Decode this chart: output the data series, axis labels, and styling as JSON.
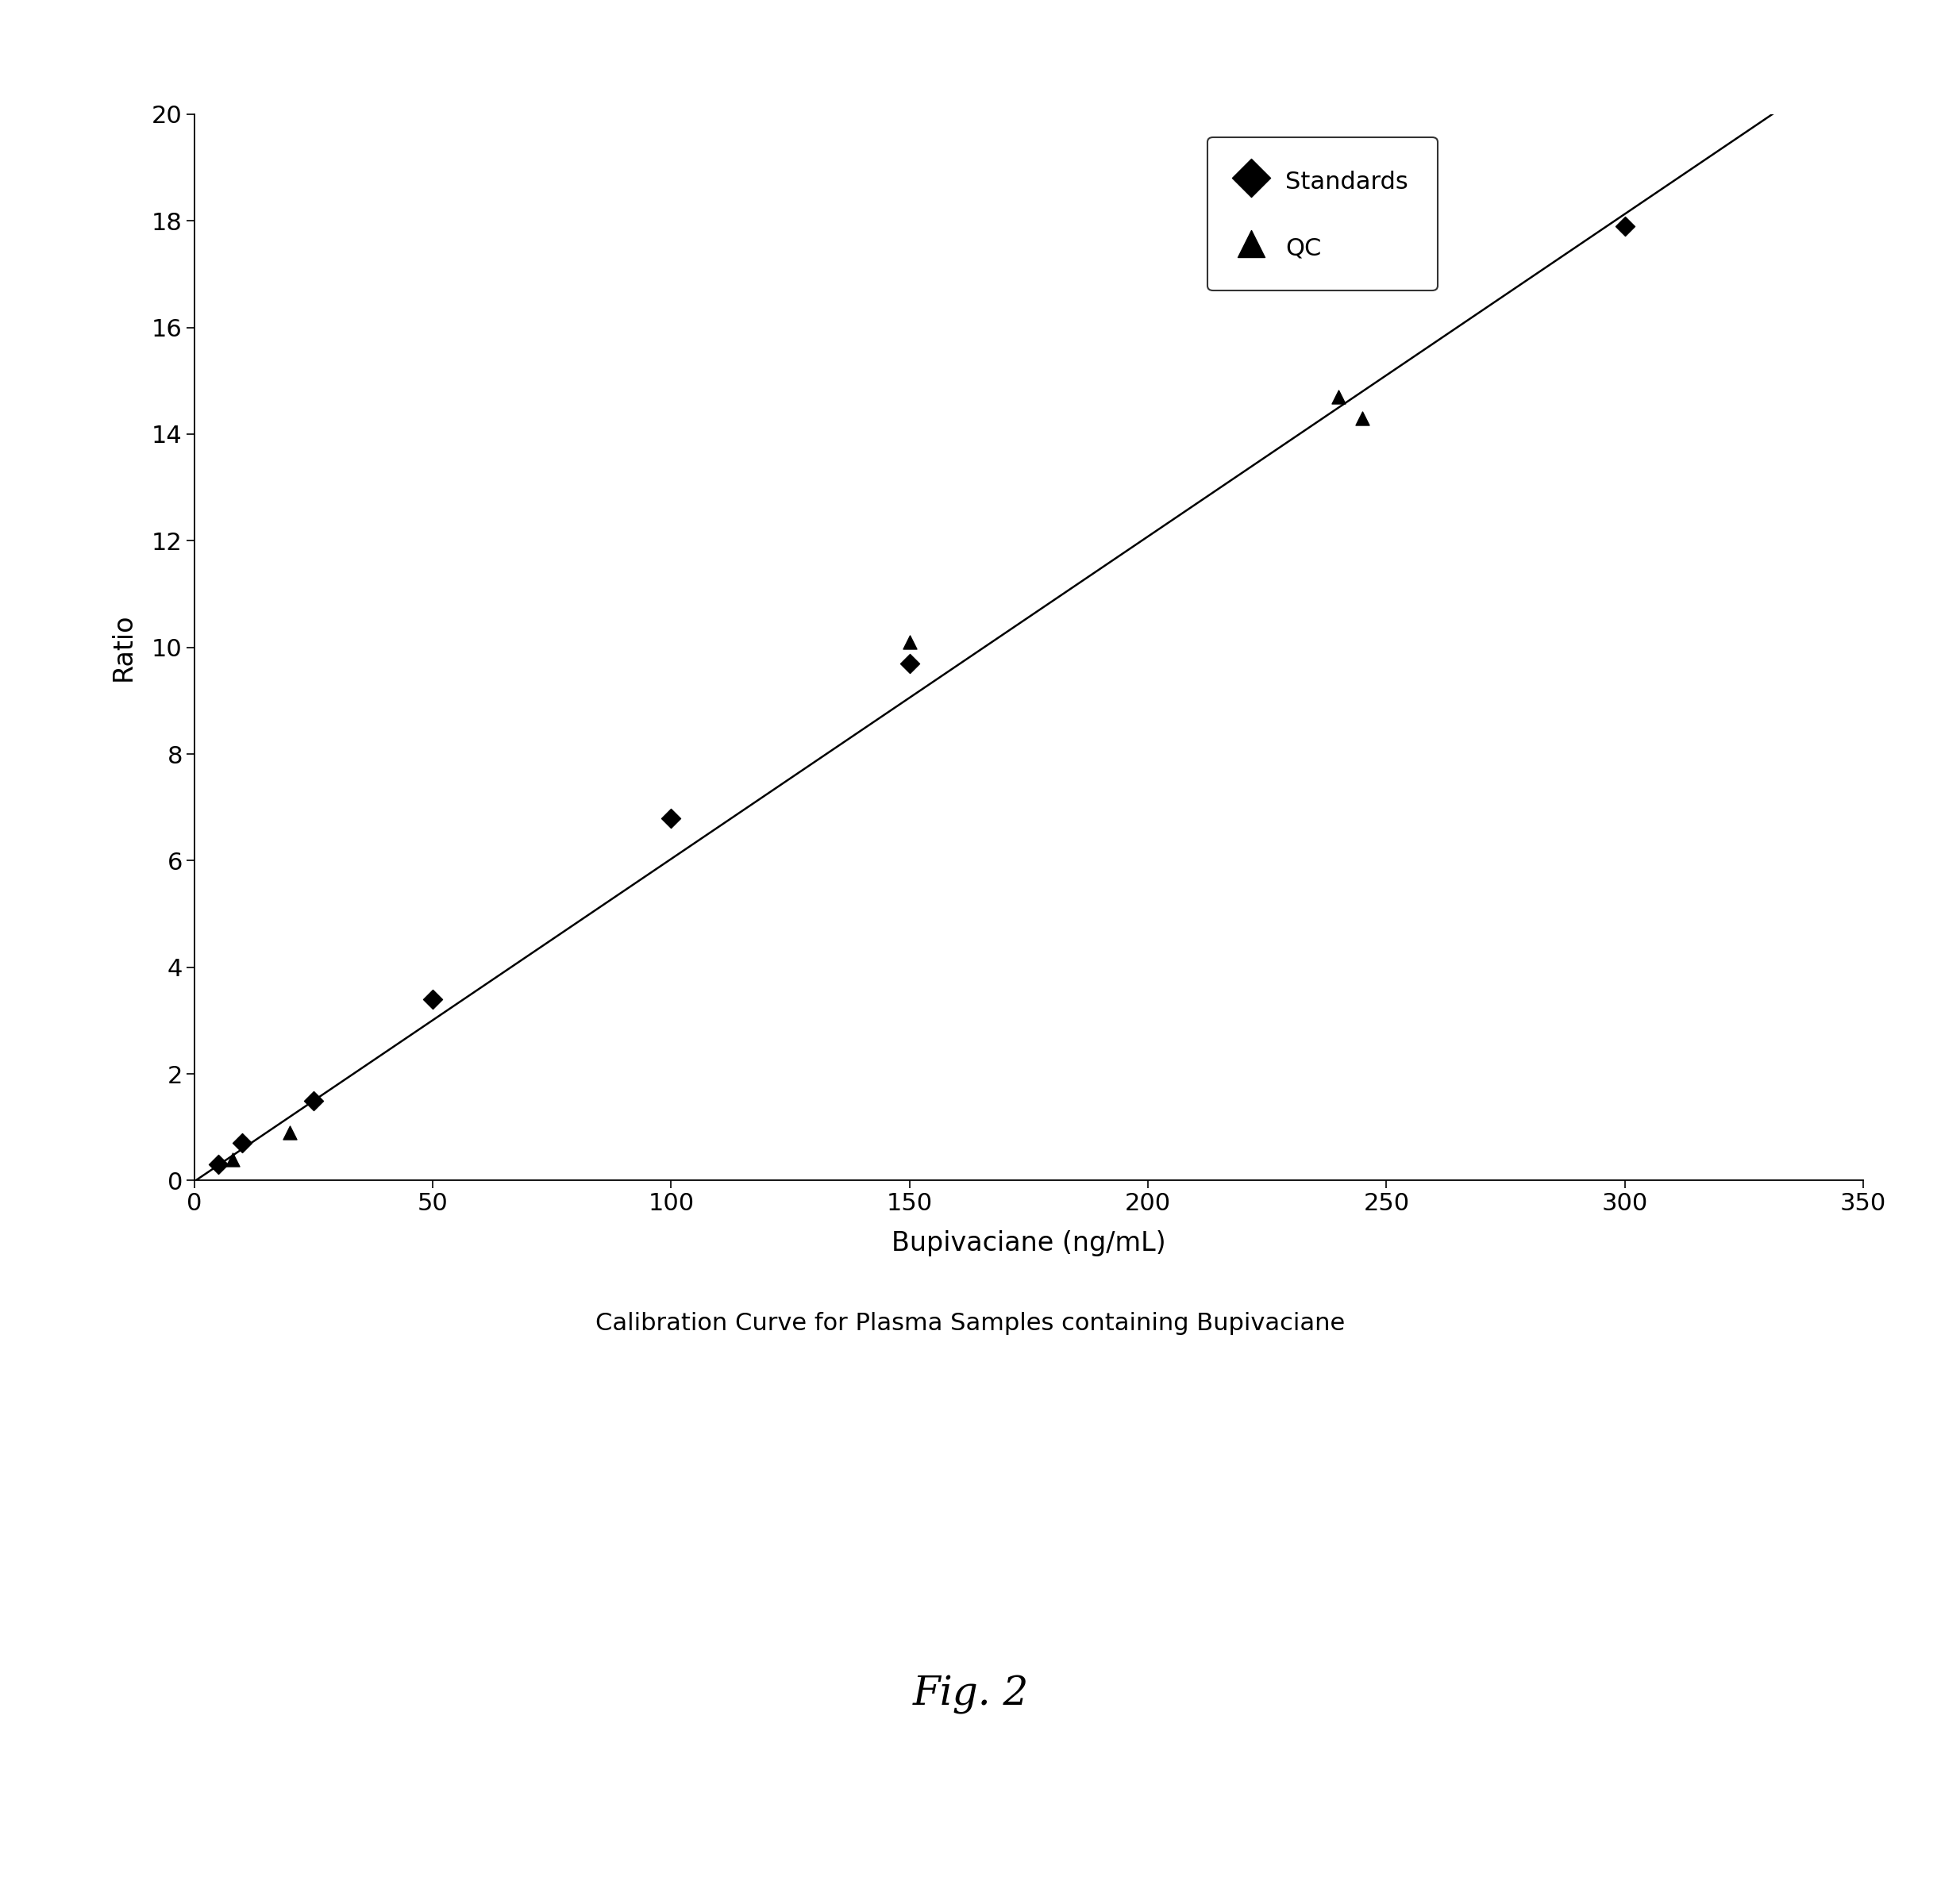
{
  "standards_x": [
    5,
    10,
    25,
    50,
    100,
    150,
    300
  ],
  "standards_y": [
    0.3,
    0.7,
    1.5,
    3.4,
    6.8,
    9.7,
    17.9
  ],
  "qc_x": [
    8,
    20,
    150,
    240,
    245
  ],
  "qc_y": [
    0.4,
    0.9,
    10.1,
    14.7,
    14.3
  ],
  "line_x": [
    0,
    340
  ],
  "line_slope": 0.0605,
  "line_intercept": -0.02,
  "xlabel": "Bupivaciane (ng/mL)",
  "ylabel": "Ratio",
  "title": "Calibration Curve for Plasma Samples containing Bupivaciane",
  "fig2_label": "Fig. 2",
  "xlim": [
    0,
    350
  ],
  "ylim": [
    0,
    20
  ],
  "xticks": [
    0,
    50,
    100,
    150,
    200,
    250,
    300,
    350
  ],
  "yticks": [
    0,
    2,
    4,
    6,
    8,
    10,
    12,
    14,
    16,
    18,
    20
  ],
  "legend_labels": [
    "Standards",
    "QC"
  ],
  "marker_color": "#000000",
  "line_color": "#000000",
  "background_color": "#ffffff",
  "tick_fontsize": 22,
  "label_fontsize": 24,
  "title_fontsize": 22,
  "legend_fontsize": 22,
  "fig2_fontsize": 36
}
